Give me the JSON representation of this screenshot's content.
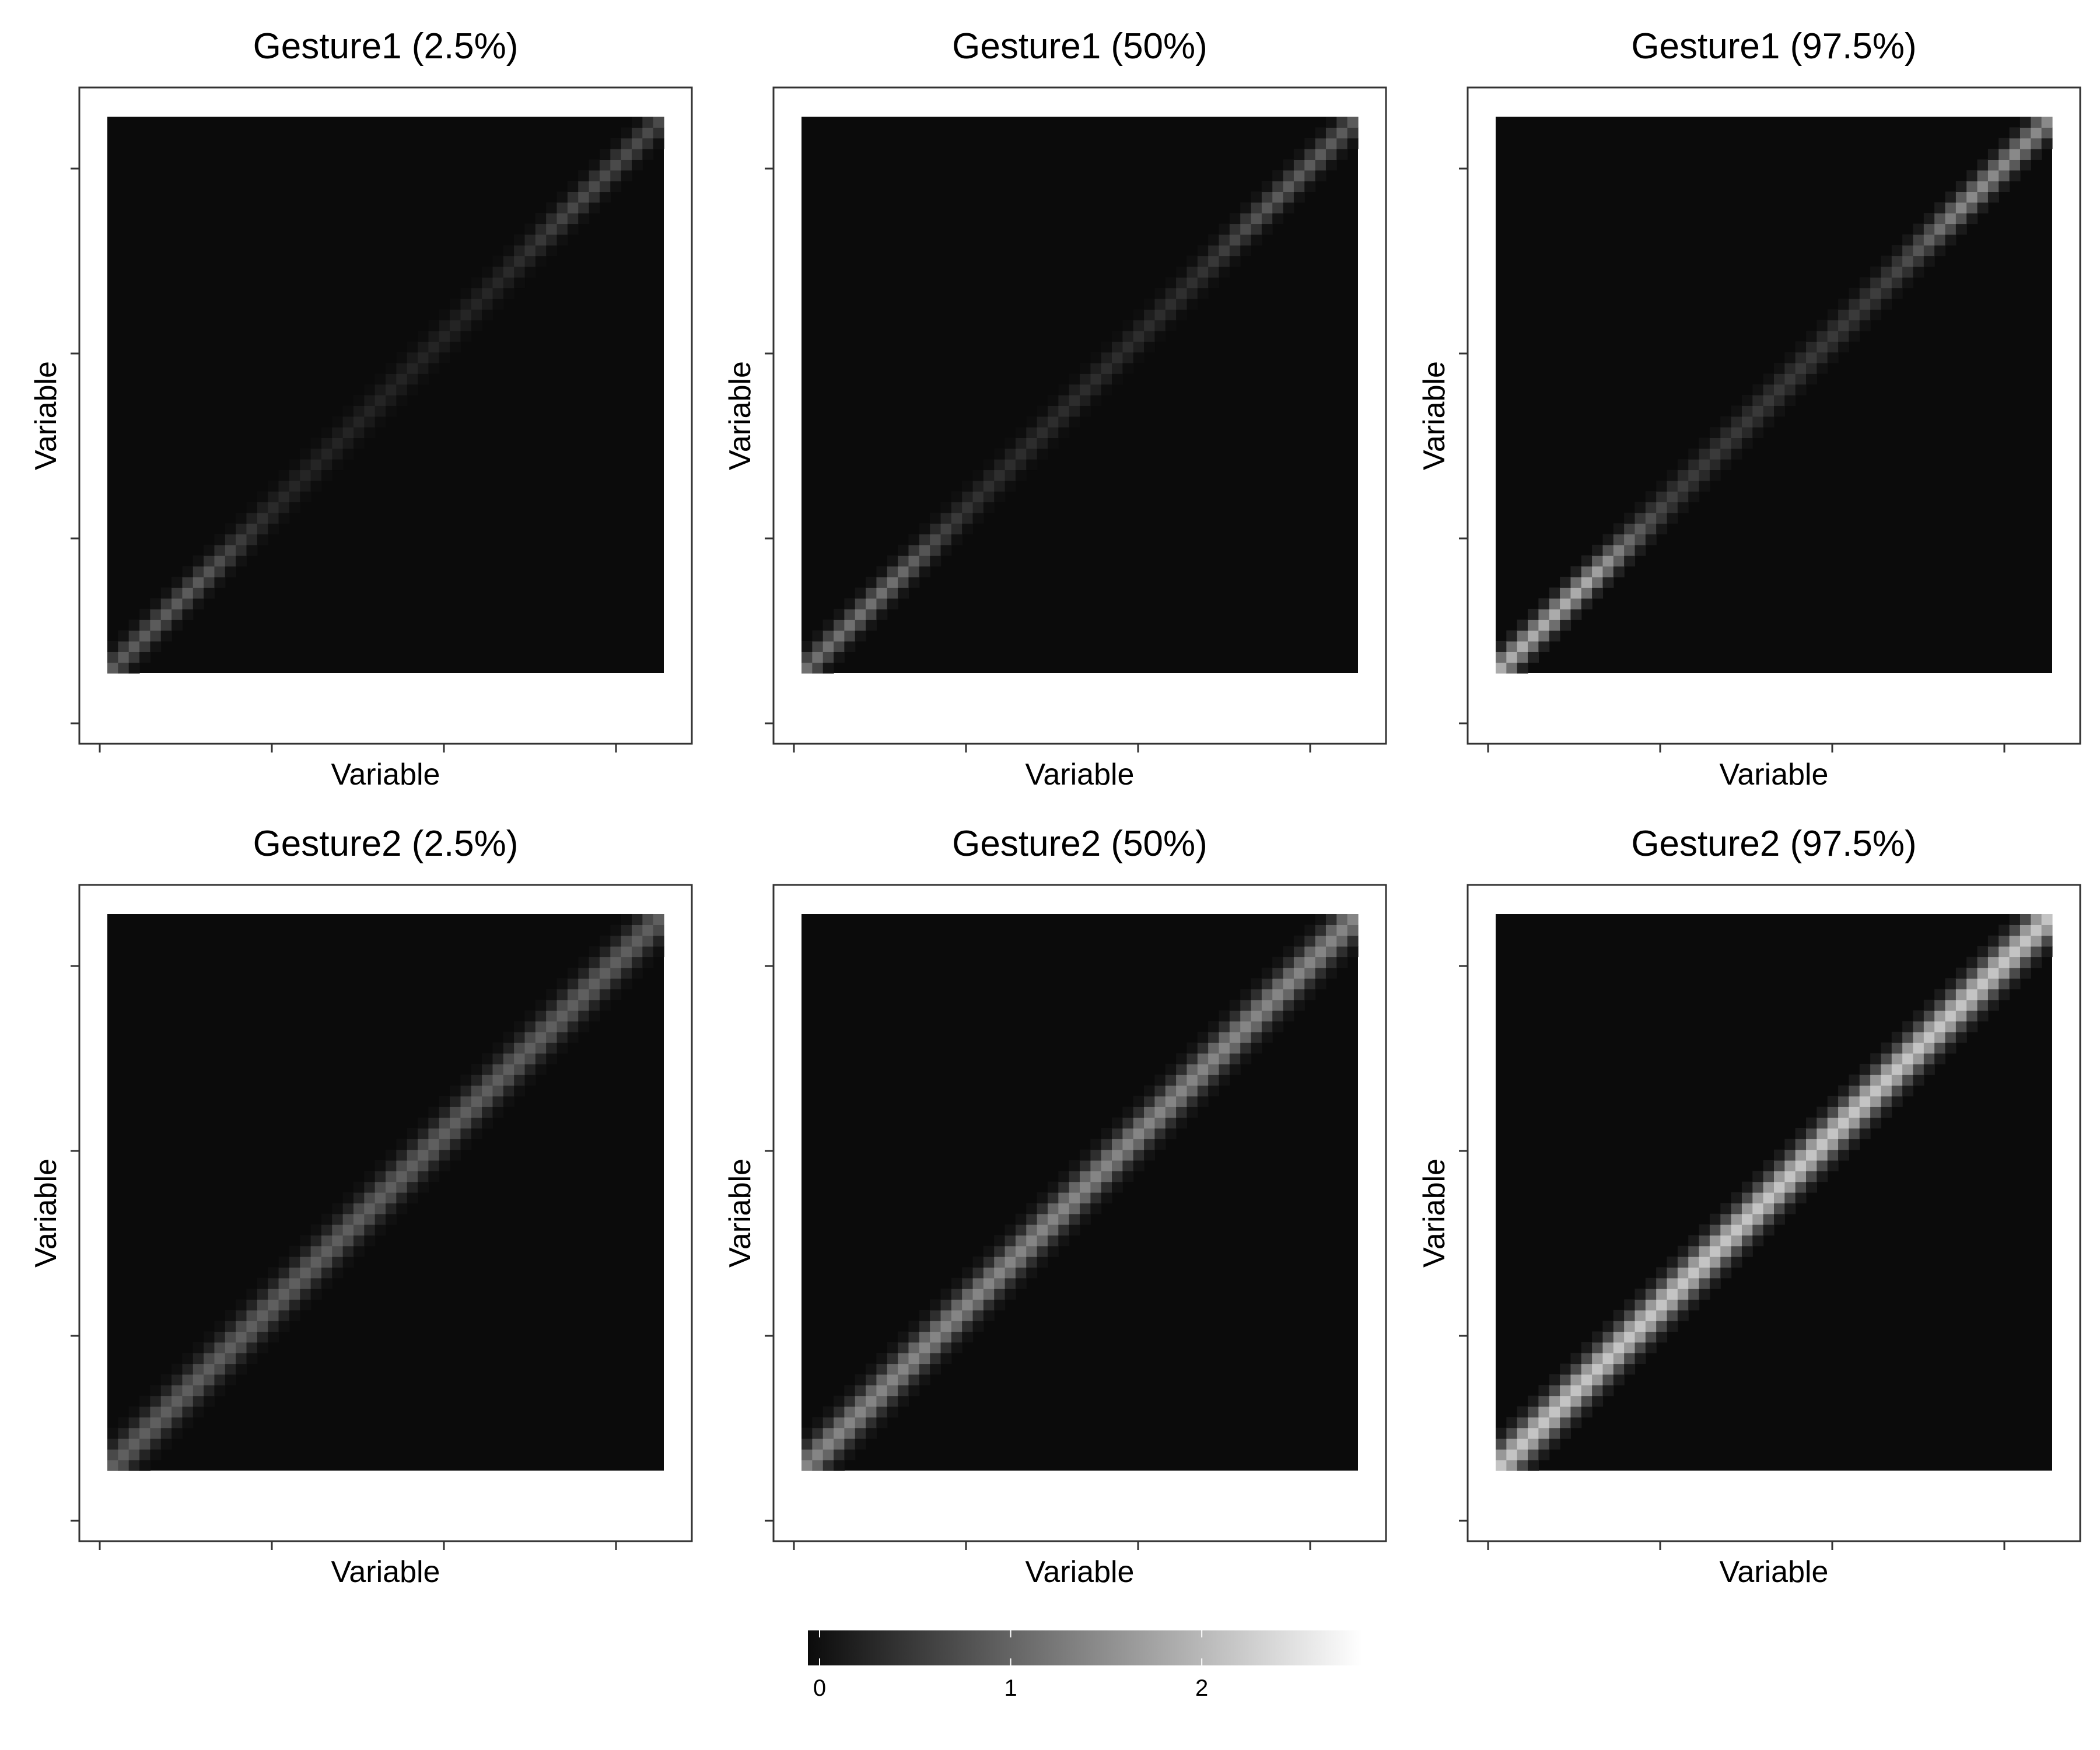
{
  "colors": {
    "background": "#ffffff",
    "panel_border": "#333333",
    "axis_ticks": "#333333",
    "scale_low": "#0b0b0b",
    "scale_high": "#ffffff"
  },
  "chart_data": [
    {
      "type": "heatmap",
      "title": "Gesture1 (2.5%)",
      "xlabel": "Variable",
      "ylabel": "Variable",
      "grid": false,
      "n_cells": 52,
      "diagonal": {
        "peak_bottom_left": 0.95,
        "peak_top_right": 0.75,
        "mid_value": 0.3,
        "cluster_lower_center": 0.15,
        "cluster_upper_center": 0.86,
        "cluster_width": 0.1,
        "band_halfwidth_cells": 2.2
      }
    },
    {
      "type": "heatmap",
      "title": "Gesture1 (50%)",
      "xlabel": "Variable",
      "ylabel": "Variable",
      "grid": false,
      "n_cells": 52,
      "diagonal": {
        "peak_bottom_left": 1.2,
        "peak_top_right": 0.95,
        "mid_value": 0.4,
        "cluster_lower_center": 0.15,
        "cluster_upper_center": 0.86,
        "cluster_width": 0.1,
        "band_halfwidth_cells": 2.2
      }
    },
    {
      "type": "heatmap",
      "title": "Gesture1 (97.5%)",
      "xlabel": "Variable",
      "ylabel": "Variable",
      "grid": false,
      "n_cells": 52,
      "diagonal": {
        "peak_bottom_left": 1.9,
        "peak_top_right": 1.5,
        "mid_value": 0.55,
        "cluster_lower_center": 0.15,
        "cluster_upper_center": 0.86,
        "cluster_width": 0.1,
        "band_halfwidth_cells": 2.4
      }
    },
    {
      "type": "heatmap",
      "title": "Gesture2 (2.5%)",
      "xlabel": "Variable",
      "ylabel": "Variable",
      "grid": false,
      "n_cells": 52,
      "diagonal": {
        "uniform_value": 1.0,
        "band_halfwidth_cells": 3.0
      }
    },
    {
      "type": "heatmap",
      "title": "Gesture2 (50%)",
      "xlabel": "Variable",
      "ylabel": "Variable",
      "grid": false,
      "n_cells": 52,
      "diagonal": {
        "uniform_value": 1.45,
        "band_halfwidth_cells": 3.0
      }
    },
    {
      "type": "heatmap",
      "title": "Gesture2 (97.5%)",
      "xlabel": "Variable",
      "ylabel": "Variable",
      "grid": false,
      "n_cells": 52,
      "diagonal": {
        "uniform_value": 2.2,
        "band_halfwidth_cells": 3.2
      }
    }
  ],
  "legend": {
    "range": [
      0,
      2.9
    ],
    "ticks": [
      0,
      1,
      2
    ],
    "labels": [
      "0",
      "1",
      "2"
    ],
    "placement": "bottom-center"
  }
}
